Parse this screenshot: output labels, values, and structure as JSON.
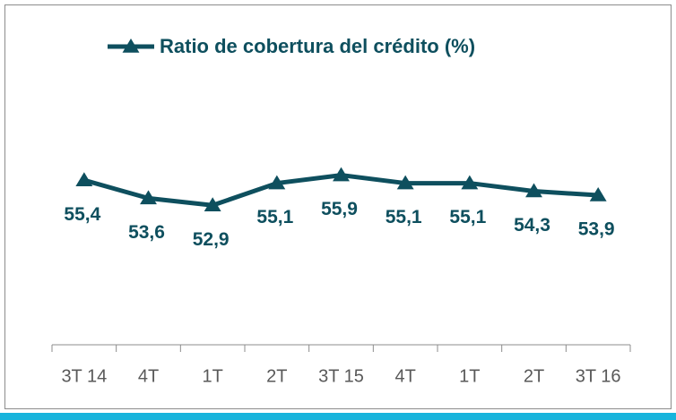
{
  "chart_data": {
    "type": "line",
    "categories": [
      "3T 14",
      "4T",
      "1T",
      "2T",
      "3T 15",
      "4T",
      "1T",
      "2T",
      "3T 16"
    ],
    "series": [
      {
        "name": "Ratio de cobertura del crédito (%)",
        "color": "#0e4f5e",
        "values": [
          55.4,
          53.6,
          52.9,
          55.1,
          55.9,
          55.1,
          55.1,
          54.3,
          53.9
        ],
        "value_labels": [
          "55,4",
          "53,6",
          "52,9",
          "55,1",
          "55,9",
          "55,1",
          "55,1",
          "54,3",
          "53,9"
        ]
      }
    ],
    "ylim": [
      39,
      68
    ]
  }
}
